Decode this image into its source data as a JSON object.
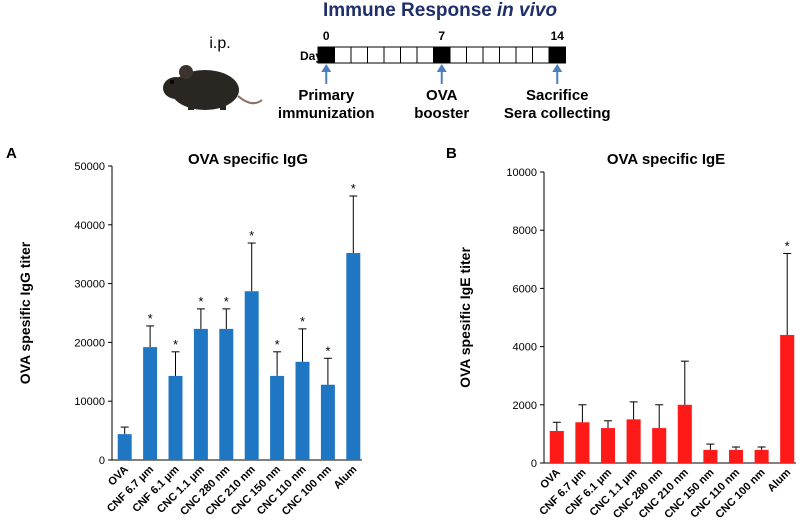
{
  "figure": {
    "title": "Immune Response",
    "title_emphasis": "in vivo",
    "title_color": "#1f2f6b",
    "route": "i.p.",
    "day_label": "Day",
    "days": [
      0,
      7,
      14
    ],
    "events": [
      {
        "day": 0,
        "lines": [
          "Primary",
          "immunization"
        ],
        "color": "#e8242b"
      },
      {
        "day": 7,
        "lines": [
          "OVA",
          "booster"
        ],
        "color": "#e8242b"
      },
      {
        "day": 14,
        "lines": [
          "Sacrifice",
          "Sera collecting"
        ],
        "color": "#2db34a"
      }
    ]
  },
  "chart_data": [
    {
      "type": "bar",
      "panel": "A",
      "title": "OVA specific IgG",
      "y_label": "OVA spesific IgG titer",
      "color": "#1f77c4",
      "categories": [
        "OVA",
        "CNF 6.7 μm",
        "CNF 6.1 μm",
        "CNC 1.1 μm",
        "CNC 280 nm",
        "CNC 210 nm",
        "CNC 150 nm",
        "CNC 110 nm",
        "CNC 100 nm",
        "Alum"
      ],
      "values": [
        4400,
        19200,
        14300,
        22300,
        22300,
        28700,
        14300,
        16700,
        12800,
        35200
      ],
      "errors": [
        1200,
        3600,
        4100,
        3400,
        3400,
        8200,
        4100,
        5600,
        4500,
        9700
      ],
      "annotations": [
        null,
        "*",
        "*",
        "*",
        "*",
        "*",
        "*",
        "*",
        "*",
        "*"
      ],
      "ylim": [
        0,
        50000
      ],
      "yticks": [
        0,
        10000,
        20000,
        30000,
        40000,
        50000
      ]
    },
    {
      "type": "bar",
      "panel": "B",
      "title": "OVA specific IgE",
      "y_label": "OVA spesific IgE titer",
      "color": "#ff1a1a",
      "categories": [
        "OVA",
        "CNF 6.7 μm",
        "CNF 6.1 μm",
        "CNC 1.1 μm",
        "CNC 280 nm",
        "CNC 210 nm",
        "CNC 150 nm",
        "CNC 110 nm",
        "CNC 100 nm",
        "Alum"
      ],
      "values": [
        1100,
        1400,
        1200,
        1500,
        1200,
        2000,
        450,
        450,
        450,
        4400
      ],
      "errors": [
        300,
        600,
        250,
        600,
        800,
        1500,
        200,
        100,
        100,
        2800
      ],
      "annotations": [
        null,
        null,
        null,
        null,
        null,
        null,
        null,
        null,
        null,
        "*"
      ],
      "ylim": [
        0,
        10000
      ],
      "yticks": [
        0,
        2000,
        4000,
        6000,
        8000,
        10000
      ]
    }
  ]
}
